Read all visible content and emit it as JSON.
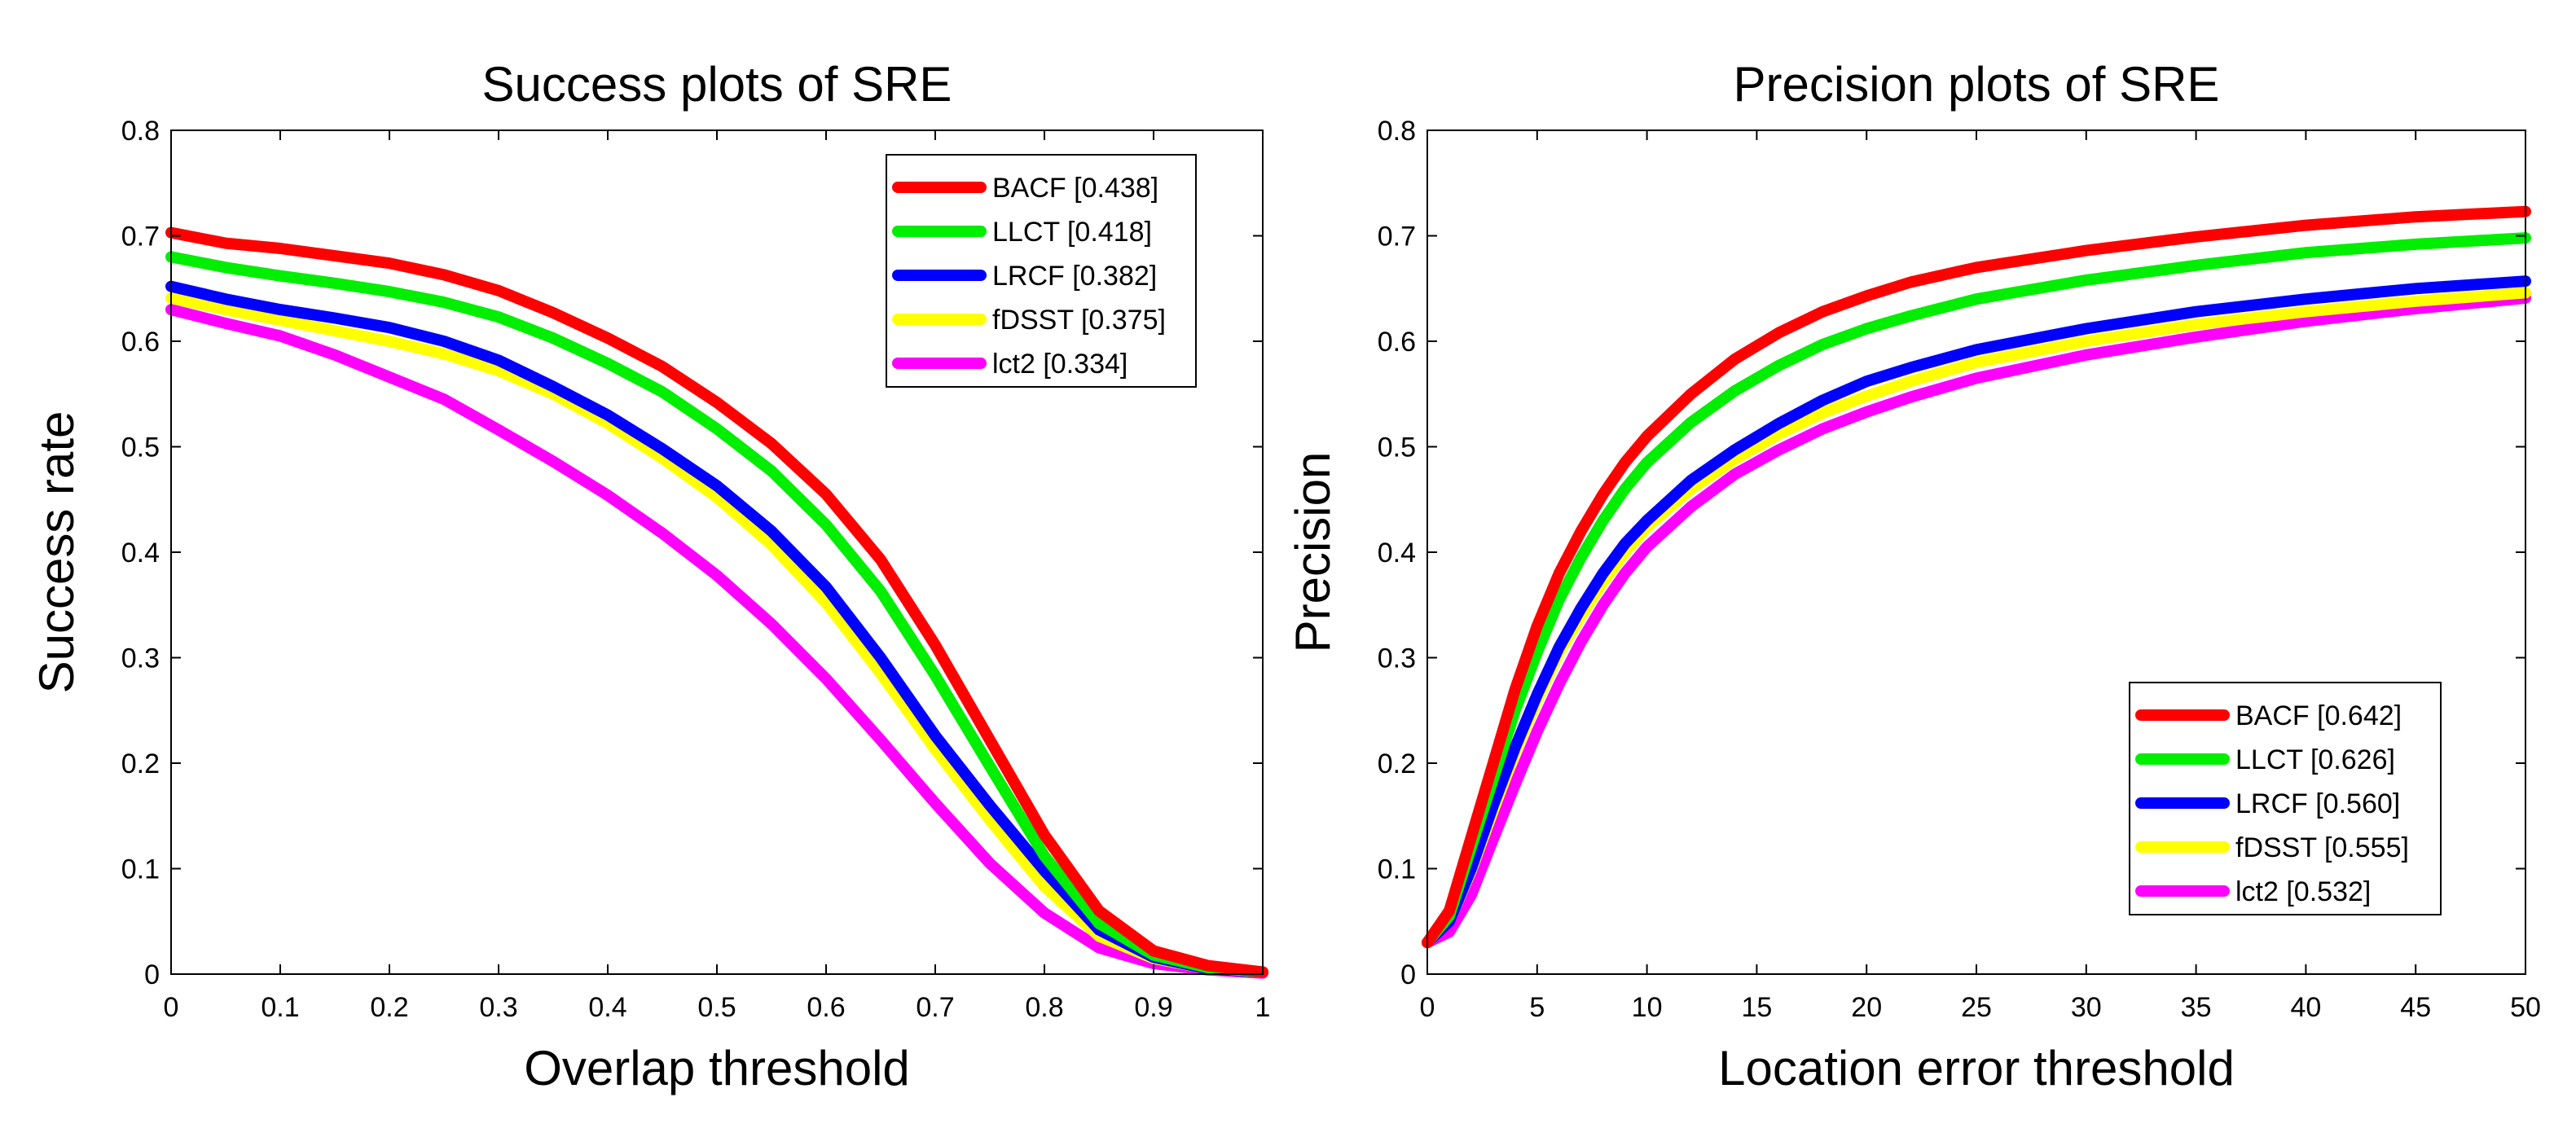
{
  "chart_data": [
    {
      "type": "line",
      "title": "Success plots of SRE",
      "xlabel": "Overlap threshold",
      "ylabel": "Success rate",
      "xlim": [
        0,
        1
      ],
      "ylim": [
        0,
        0.8
      ],
      "xticks": [
        0,
        0.1,
        0.2,
        0.3,
        0.4,
        0.5,
        0.6,
        0.7,
        0.8,
        0.9,
        1
      ],
      "xtick_labels": [
        "0",
        "0.1",
        "0.2",
        "0.3",
        "0.4",
        "0.5",
        "0.6",
        "0.7",
        "0.8",
        "0.9",
        "1"
      ],
      "yticks": [
        0,
        0.1,
        0.2,
        0.3,
        0.4,
        0.5,
        0.6,
        0.7,
        0.8
      ],
      "ytick_labels": [
        "0",
        "0.1",
        "0.2",
        "0.3",
        "0.4",
        "0.5",
        "0.6",
        "0.7",
        "0.8"
      ],
      "grid": false,
      "legend_position": "top-right",
      "x": [
        0,
        0.05,
        0.1,
        0.15,
        0.2,
        0.25,
        0.3,
        0.35,
        0.4,
        0.45,
        0.5,
        0.55,
        0.6,
        0.65,
        0.7,
        0.75,
        0.8,
        0.85,
        0.9,
        0.95,
        1
      ],
      "series": [
        {
          "name": "BACF [0.438]",
          "color": "#ff0000",
          "values": [
            0.703,
            0.693,
            0.688,
            0.681,
            0.674,
            0.663,
            0.648,
            0.627,
            0.603,
            0.576,
            0.542,
            0.503,
            0.455,
            0.393,
            0.312,
            0.222,
            0.132,
            0.06,
            0.022,
            0.008,
            0.002
          ]
        },
        {
          "name": "LLCT [0.418]",
          "color": "#00ee00",
          "values": [
            0.68,
            0.67,
            0.662,
            0.655,
            0.647,
            0.637,
            0.623,
            0.603,
            0.579,
            0.552,
            0.517,
            0.477,
            0.426,
            0.363,
            0.283,
            0.197,
            0.112,
            0.048,
            0.018,
            0.006,
            0.002
          ]
        },
        {
          "name": "LRCF [0.382]",
          "color": "#0000ff",
          "values": [
            0.652,
            0.64,
            0.63,
            0.622,
            0.613,
            0.6,
            0.582,
            0.557,
            0.53,
            0.498,
            0.463,
            0.42,
            0.367,
            0.3,
            0.226,
            0.16,
            0.098,
            0.042,
            0.016,
            0.005,
            0.002
          ]
        },
        {
          "name": "fDSST [0.375]",
          "color": "#ffff00",
          "values": [
            0.641,
            0.63,
            0.62,
            0.61,
            0.6,
            0.588,
            0.572,
            0.55,
            0.522,
            0.489,
            0.452,
            0.407,
            0.352,
            0.285,
            0.213,
            0.146,
            0.083,
            0.036,
            0.015,
            0.005,
            0.002
          ]
        },
        {
          "name": "lct2 [0.334]",
          "color": "#ff00ff",
          "values": [
            0.63,
            0.617,
            0.605,
            0.587,
            0.566,
            0.545,
            0.516,
            0.486,
            0.454,
            0.418,
            0.378,
            0.332,
            0.28,
            0.222,
            0.162,
            0.105,
            0.058,
            0.025,
            0.01,
            0.004,
            0.001
          ]
        }
      ]
    },
    {
      "type": "line",
      "title": "Precision plots of SRE",
      "xlabel": "Location error threshold",
      "ylabel": "Precision",
      "xlim": [
        0,
        50
      ],
      "ylim": [
        0,
        0.8
      ],
      "xticks": [
        0,
        5,
        10,
        15,
        20,
        25,
        30,
        35,
        40,
        45,
        50
      ],
      "xtick_labels": [
        "0",
        "5",
        "10",
        "15",
        "20",
        "25",
        "30",
        "35",
        "40",
        "45",
        "50"
      ],
      "yticks": [
        0,
        0.1,
        0.2,
        0.3,
        0.4,
        0.5,
        0.6,
        0.7,
        0.8
      ],
      "ytick_labels": [
        "0",
        "0.1",
        "0.2",
        "0.3",
        "0.4",
        "0.5",
        "0.6",
        "0.7",
        "0.8"
      ],
      "grid": false,
      "legend_position": "bottom-right",
      "x": [
        0,
        1,
        2,
        3,
        4,
        5,
        6,
        7,
        8,
        9,
        10,
        12,
        14,
        16,
        18,
        20,
        22,
        25,
        30,
        35,
        40,
        45,
        50
      ],
      "series": [
        {
          "name": "BACF [0.642]",
          "color": "#ff0000",
          "values": [
            0.03,
            0.06,
            0.13,
            0.2,
            0.27,
            0.33,
            0.38,
            0.42,
            0.455,
            0.485,
            0.51,
            0.55,
            0.583,
            0.608,
            0.628,
            0.643,
            0.656,
            0.67,
            0.686,
            0.699,
            0.71,
            0.718,
            0.723
          ]
        },
        {
          "name": "LLCT [0.626]",
          "color": "#00ee00",
          "values": [
            0.03,
            0.055,
            0.12,
            0.185,
            0.25,
            0.305,
            0.355,
            0.395,
            0.43,
            0.46,
            0.485,
            0.523,
            0.553,
            0.577,
            0.597,
            0.612,
            0.624,
            0.64,
            0.658,
            0.672,
            0.684,
            0.692,
            0.698
          ]
        },
        {
          "name": "LRCF [0.560]",
          "color": "#0000ff",
          "values": [
            0.03,
            0.05,
            0.1,
            0.16,
            0.215,
            0.265,
            0.31,
            0.347,
            0.38,
            0.408,
            0.43,
            0.468,
            0.497,
            0.522,
            0.544,
            0.562,
            0.575,
            0.592,
            0.612,
            0.628,
            0.64,
            0.65,
            0.657
          ]
        },
        {
          "name": "fDSST [0.555]",
          "color": "#ffff00",
          "values": [
            0.03,
            0.05,
            0.098,
            0.155,
            0.21,
            0.26,
            0.305,
            0.34,
            0.372,
            0.4,
            0.424,
            0.46,
            0.488,
            0.512,
            0.532,
            0.548,
            0.562,
            0.58,
            0.6,
            0.616,
            0.628,
            0.638,
            0.646
          ]
        },
        {
          "name": "lct2 [0.532]",
          "color": "#ff00ff",
          "values": [
            0.03,
            0.04,
            0.075,
            0.128,
            0.18,
            0.23,
            0.275,
            0.315,
            0.35,
            0.38,
            0.405,
            0.443,
            0.474,
            0.497,
            0.517,
            0.533,
            0.547,
            0.565,
            0.587,
            0.604,
            0.619,
            0.631,
            0.641
          ]
        }
      ]
    }
  ]
}
